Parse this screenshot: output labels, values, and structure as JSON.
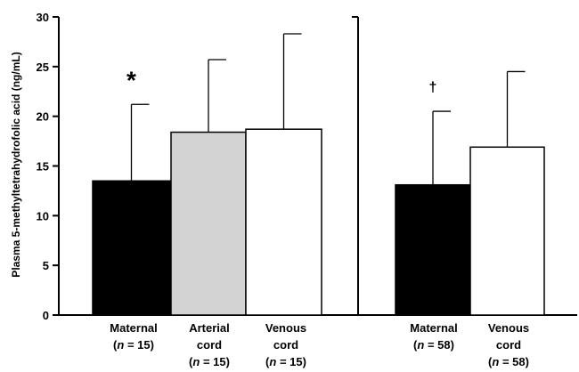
{
  "chart_data": {
    "type": "bar",
    "ylabel": "Plasma 5-methyltetrahydrofolic acid (ng/mL)",
    "ylim": [
      0,
      30
    ],
    "yticks": [
      "0",
      "5",
      "10",
      "15",
      "20",
      "25",
      "30"
    ],
    "error_bars": "one-sided upward (SD)",
    "panels": [
      {
        "bars": [
          {
            "label_lines": [
              "Maternal",
              "(n = 15)"
            ],
            "value": 13.5,
            "error_top": 21.2,
            "fill": "#000000",
            "marker": "*"
          },
          {
            "label_lines": [
              "Arterial",
              "cord",
              "(n = 15)"
            ],
            "value": 18.4,
            "error_top": 25.7,
            "fill": "#d3d3d3",
            "marker": ""
          },
          {
            "label_lines": [
              "Venous",
              "cord",
              "(n = 15)"
            ],
            "value": 18.7,
            "error_top": 28.3,
            "fill": "#ffffff",
            "marker": ""
          }
        ]
      },
      {
        "bars": [
          {
            "label_lines": [
              "Maternal",
              "(n = 58)"
            ],
            "value": 13.1,
            "error_top": 20.5,
            "fill": "#000000",
            "marker": "†"
          },
          {
            "label_lines": [
              "Venous",
              "cord",
              "(n = 58)"
            ],
            "value": 16.9,
            "error_top": 24.5,
            "fill": "#ffffff",
            "marker": ""
          }
        ]
      }
    ]
  }
}
